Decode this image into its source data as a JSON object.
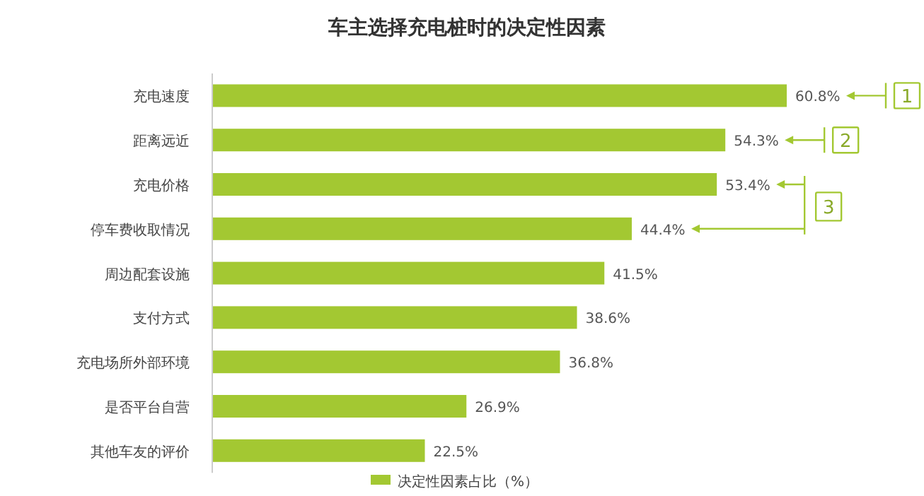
{
  "chart_data": {
    "type": "bar",
    "orientation": "horizontal",
    "title": "车主选择充电桩时的决定性因素",
    "categories": [
      "充电速度",
      "距离远近",
      "充电价格",
      "停车费收取情况",
      "周边配套设施",
      "支付方式",
      "充电场所外部环境",
      "是否平台自营",
      "其他车友的评价"
    ],
    "series": [
      {
        "name": "决定性因素占比（%）",
        "color": "#a3c832",
        "values": [
          60.8,
          54.3,
          53.4,
          44.4,
          41.5,
          38.6,
          36.8,
          26.9,
          22.5
        ],
        "value_labels": [
          "60.8%",
          "54.3%",
          "53.4%",
          "44.4%",
          "41.5%",
          "38.6%",
          "36.8%",
          "26.9%",
          "22.5%"
        ]
      }
    ],
    "legend": "bottom",
    "annotations": [
      "1",
      "2",
      "3"
    ]
  }
}
